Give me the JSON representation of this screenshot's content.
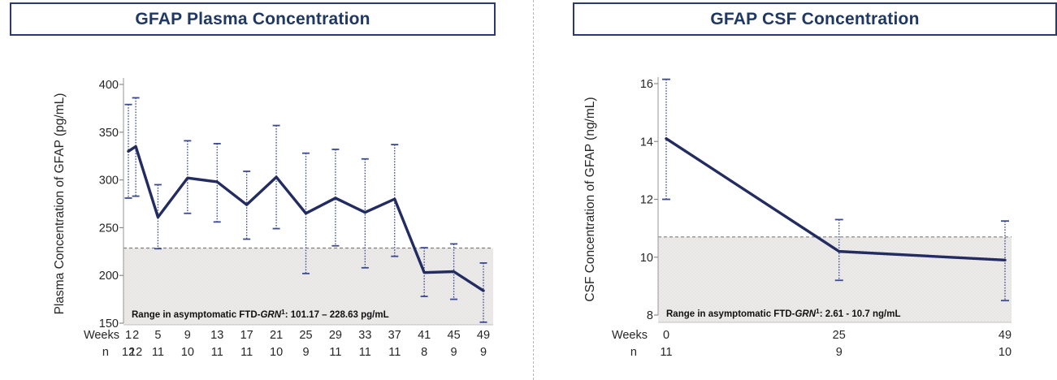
{
  "colors": {
    "line_navy": "#232c61",
    "error_bar_navy": "#3c4a8f",
    "title_navy": "#1f3864",
    "band_fill": "#edeaea",
    "band_dot": "#d9d5d5",
    "band_top_dash": "#7f7f7f",
    "axis_gray": "#a6a6a6",
    "text_dark": "#262626"
  },
  "panels": [
    {
      "title": "GFAP Plasma Concentration"
    },
    {
      "title": "GFAP CSF Concentration"
    }
  ],
  "chart_data": [
    {
      "type": "line",
      "title": "GFAP Plasma Concentration",
      "ylabel": "Plasma Concentration of GFAP (pg/mL)",
      "x_header": "Weeks",
      "n_header": "n",
      "x": [
        1,
        2,
        5,
        9,
        13,
        17,
        21,
        25,
        29,
        33,
        37,
        41,
        45,
        49
      ],
      "values": [
        330,
        335,
        261,
        302,
        298,
        274,
        303,
        265,
        281,
        266,
        280,
        203,
        204,
        184
      ],
      "err_low": [
        281,
        283,
        228,
        265,
        256,
        238,
        249,
        202,
        231,
        208,
        220,
        178,
        175,
        151
      ],
      "err_high": [
        379,
        386,
        295,
        341,
        338,
        309,
        357,
        328,
        332,
        322,
        337,
        229,
        233,
        213
      ],
      "n": [
        12,
        12,
        11,
        10,
        11,
        11,
        10,
        9,
        11,
        11,
        11,
        8,
        9,
        9
      ],
      "ylim": [
        150,
        400
      ],
      "yticks": [
        400,
        350,
        300,
        250,
        200,
        150
      ],
      "grid": false,
      "band": {
        "low": 150,
        "high": 228.63
      },
      "annotation": {
        "pre": "Range in asymptomatic FTD-",
        "gene": "GRN",
        "sup": "1",
        "post": ": 101.17 – 228.63 pg/mL"
      }
    },
    {
      "type": "line",
      "title": "GFAP CSF Concentration",
      "ylabel": "CSF Concentration of GFAP (ng/mL)",
      "x_header": "Weeks",
      "n_header": "n",
      "x": [
        0,
        25,
        49
      ],
      "values": [
        14.1,
        10.2,
        9.9
      ],
      "err_low": [
        12.0,
        9.2,
        8.5
      ],
      "err_high": [
        16.15,
        11.3,
        11.25
      ],
      "n": [
        11,
        9,
        10
      ],
      "ylim": [
        8,
        16
      ],
      "yticks": [
        16,
        14,
        12,
        10,
        8
      ],
      "grid": false,
      "band": {
        "low": 8,
        "high": 10.7
      },
      "annotation": {
        "pre": "Range in asymptomatic FTD-",
        "gene": "GRN",
        "sup": "1",
        "post": ": 2.61 - 10.7 ng/mL"
      }
    }
  ]
}
